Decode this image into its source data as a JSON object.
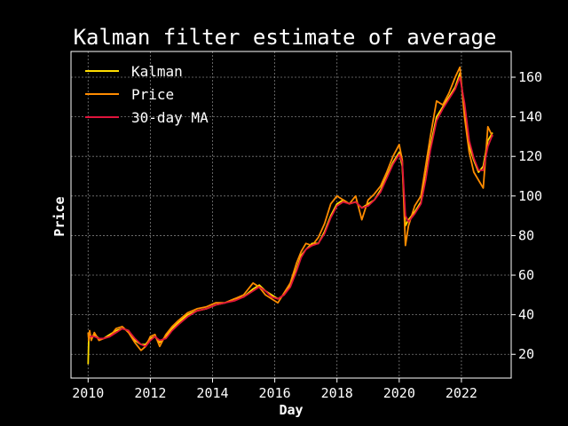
{
  "chart_data": {
    "type": "line",
    "title": "Kalman filter estimate of average",
    "xlabel": "Day",
    "ylabel": "Price",
    "xlim": [
      2009.45,
      2023.6
    ],
    "ylim": [
      8,
      173
    ],
    "x_ticks": [
      2010,
      2012,
      2014,
      2016,
      2018,
      2020,
      2022
    ],
    "y_ticks": [
      20,
      40,
      60,
      80,
      100,
      120,
      140,
      160
    ],
    "y_axis_position": "right",
    "grid": true,
    "legend_position": "top-left",
    "background": "#000000",
    "series": [
      {
        "name": "Kalman",
        "color": "#ffdd00",
        "x": [
          2010.0,
          2010.02,
          2010.05,
          2010.1,
          2010.2,
          2010.35,
          2010.5,
          2010.7,
          2010.9,
          2011.1,
          2011.3,
          2011.5,
          2011.7,
          2011.85,
          2012.0,
          2012.15,
          2012.3,
          2012.5,
          2012.7,
          2012.9,
          2013.2,
          2013.5,
          2013.8,
          2014.1,
          2014.4,
          2014.7,
          2015.0,
          2015.3,
          2015.5,
          2015.7,
          2015.9,
          2016.1,
          2016.3,
          2016.5,
          2016.7,
          2016.85,
          2017.0,
          2017.2,
          2017.4,
          2017.6,
          2017.8,
          2018.0,
          2018.2,
          2018.4,
          2018.6,
          2018.8,
          2019.0,
          2019.2,
          2019.4,
          2019.6,
          2019.8,
          2020.0,
          2020.1,
          2020.2,
          2020.3,
          2020.5,
          2020.7,
          2020.85,
          2021.0,
          2021.2,
          2021.4,
          2021.6,
          2021.8,
          2021.95,
          2022.1,
          2022.25,
          2022.4,
          2022.55,
          2022.7,
          2022.85,
          2023.0
        ],
        "values": [
          15,
          28,
          31,
          28,
          30,
          28,
          28,
          30,
          32,
          33,
          32,
          27,
          25,
          25,
          28,
          29,
          26,
          29,
          33,
          36,
          40,
          42,
          43,
          45,
          46,
          48,
          49,
          53,
          55,
          52,
          50,
          48,
          50,
          55,
          63,
          70,
          73,
          76,
          76,
          82,
          90,
          96,
          98,
          96,
          97,
          94,
          96,
          98,
          103,
          110,
          117,
          122,
          115,
          85,
          88,
          92,
          97,
          110,
          125,
          140,
          145,
          150,
          155,
          162,
          145,
          125,
          118,
          112,
          115,
          128,
          132
        ]
      },
      {
        "name": "Price",
        "color": "#ff8c00",
        "x": [
          2010.0,
          2010.02,
          2010.05,
          2010.1,
          2010.2,
          2010.35,
          2010.5,
          2010.7,
          2010.9,
          2011.1,
          2011.3,
          2011.5,
          2011.7,
          2011.85,
          2012.0,
          2012.15,
          2012.3,
          2012.5,
          2012.7,
          2012.9,
          2013.2,
          2013.5,
          2013.8,
          2014.1,
          2014.4,
          2014.7,
          2015.0,
          2015.3,
          2015.5,
          2015.7,
          2015.9,
          2016.1,
          2016.3,
          2016.5,
          2016.7,
          2016.85,
          2017.0,
          2017.2,
          2017.4,
          2017.6,
          2017.8,
          2018.0,
          2018.2,
          2018.4,
          2018.6,
          2018.8,
          2019.0,
          2019.2,
          2019.4,
          2019.6,
          2019.8,
          2020.0,
          2020.1,
          2020.2,
          2020.3,
          2020.5,
          2020.7,
          2020.85,
          2021.0,
          2021.2,
          2021.4,
          2021.6,
          2021.8,
          2021.95,
          2022.1,
          2022.25,
          2022.4,
          2022.55,
          2022.7,
          2022.85,
          2023.0
        ],
        "values": [
          31,
          27,
          32,
          27,
          31,
          27,
          28,
          29,
          33,
          34,
          31,
          26,
          22,
          24,
          29,
          30,
          24,
          30,
          34,
          37,
          41,
          43,
          44,
          46,
          46,
          48,
          50,
          56,
          54,
          50,
          48,
          46,
          51,
          56,
          66,
          72,
          76,
          75,
          79,
          86,
          96,
          100,
          98,
          96,
          100,
          88,
          98,
          101,
          105,
          112,
          120,
          126,
          118,
          75,
          85,
          95,
          100,
          115,
          130,
          148,
          146,
          152,
          160,
          165,
          140,
          122,
          112,
          108,
          104,
          135,
          130
        ]
      },
      {
        "name": "30-day MA",
        "color": "#e0143c",
        "x": [
          2010.05,
          2010.1,
          2010.2,
          2010.35,
          2010.5,
          2010.7,
          2010.9,
          2011.1,
          2011.3,
          2011.5,
          2011.7,
          2011.85,
          2012.0,
          2012.15,
          2012.3,
          2012.5,
          2012.7,
          2012.9,
          2013.2,
          2013.5,
          2013.8,
          2014.1,
          2014.4,
          2014.7,
          2015.0,
          2015.3,
          2015.5,
          2015.7,
          2015.9,
          2016.1,
          2016.3,
          2016.5,
          2016.7,
          2016.85,
          2017.0,
          2017.2,
          2017.4,
          2017.6,
          2017.8,
          2018.0,
          2018.2,
          2018.4,
          2018.6,
          2018.8,
          2019.0,
          2019.2,
          2019.4,
          2019.6,
          2019.8,
          2020.0,
          2020.1,
          2020.2,
          2020.3,
          2020.5,
          2020.7,
          2020.85,
          2021.0,
          2021.2,
          2021.4,
          2021.6,
          2021.8,
          2021.95,
          2022.1,
          2022.25,
          2022.4,
          2022.55,
          2022.7,
          2022.85,
          2023.0
        ],
        "values": [
          29,
          29,
          29,
          28,
          28,
          29,
          31,
          33,
          32,
          28,
          25,
          24,
          27,
          29,
          27,
          28,
          32,
          35,
          39,
          42,
          43,
          45,
          46,
          47,
          49,
          52,
          54,
          52,
          49,
          48,
          50,
          54,
          62,
          69,
          73,
          75,
          76,
          81,
          89,
          95,
          97,
          96,
          97,
          94,
          95,
          98,
          102,
          109,
          116,
          121,
          117,
          90,
          87,
          91,
          96,
          108,
          123,
          138,
          144,
          149,
          154,
          160,
          147,
          128,
          119,
          113,
          113,
          125,
          131
        ]
      }
    ]
  }
}
